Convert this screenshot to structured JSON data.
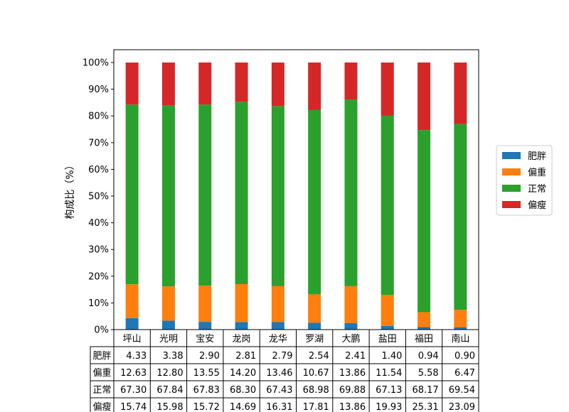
{
  "chart_data": {
    "type": "bar",
    "stacked": true,
    "ylabel": "构成比（%）",
    "ylim": [
      0,
      100
    ],
    "yticks": [
      "0%",
      "10%",
      "20%",
      "30%",
      "40%",
      "50%",
      "60%",
      "70%",
      "80%",
      "90%",
      "100%"
    ],
    "categories": [
      "坪山",
      "光明",
      "宝安",
      "龙岗",
      "龙华",
      "罗湖",
      "大鹏",
      "盐田",
      "福田",
      "南山"
    ],
    "legend_position": "right",
    "series": [
      {
        "name": "肥胖",
        "color": "#1f77b4",
        "values": [
          4.33,
          3.38,
          2.9,
          2.81,
          2.79,
          2.54,
          2.41,
          1.4,
          0.94,
          0.9
        ]
      },
      {
        "name": "偏重",
        "color": "#ff7f0e",
        "values": [
          12.63,
          12.8,
          13.55,
          14.2,
          13.46,
          10.67,
          13.86,
          11.54,
          5.58,
          6.47
        ]
      },
      {
        "name": "正常",
        "color": "#2ca02c",
        "values": [
          67.3,
          67.84,
          67.83,
          68.3,
          67.43,
          68.98,
          69.88,
          67.13,
          68.17,
          69.54
        ]
      },
      {
        "name": "偏瘦",
        "color": "#d62728",
        "values": [
          15.74,
          15.98,
          15.72,
          14.69,
          16.31,
          17.81,
          13.86,
          19.93,
          25.31,
          23.09
        ]
      }
    ],
    "table": {
      "rows": [
        {
          "label": "肥胖",
          "cells": [
            "4.33",
            "3.38",
            "2.90",
            "2.81",
            "2.79",
            "2.54",
            "2.41",
            "1.40",
            "0.94",
            "0.90"
          ]
        },
        {
          "label": "偏重",
          "cells": [
            "12.63",
            "12.80",
            "13.55",
            "14.20",
            "13.46",
            "10.67",
            "13.86",
            "11.54",
            "5.58",
            "6.47"
          ]
        },
        {
          "label": "正常",
          "cells": [
            "67.30",
            "67.84",
            "67.83",
            "68.30",
            "67.43",
            "68.98",
            "69.88",
            "67.13",
            "68.17",
            "69.54"
          ]
        },
        {
          "label": "偏瘦",
          "cells": [
            "15.74",
            "15.98",
            "15.72",
            "14.69",
            "16.31",
            "17.81",
            "13.86",
            "19.93",
            "25.31",
            "23.09"
          ]
        }
      ]
    }
  }
}
